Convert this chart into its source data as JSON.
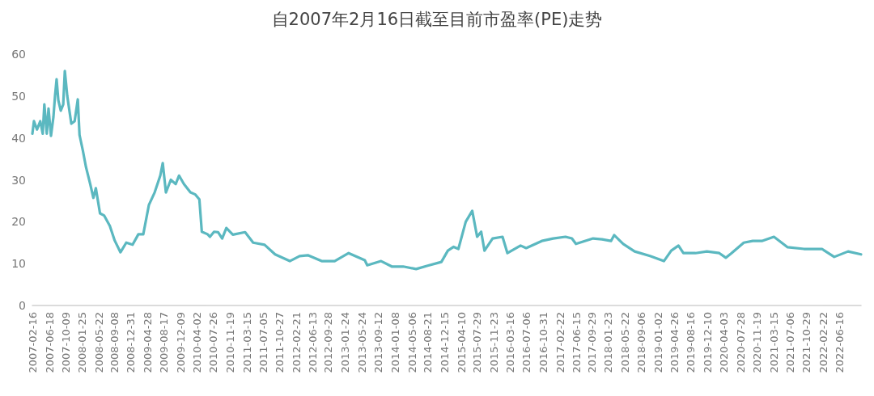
{
  "chart_data": {
    "type": "line",
    "title": "自2007年2月16日截至目前市盈率(PE)走势",
    "x": [
      "2007-02-16",
      "2007-02-27",
      "2007-03-20",
      "2007-04-12",
      "2007-04-29",
      "2007-05-10",
      "2007-05-27",
      "2007-06-08",
      "2007-06-25",
      "2007-07-12",
      "2007-07-23",
      "2007-08-03",
      "2007-08-15",
      "2007-09-01",
      "2007-09-18",
      "2007-09-29",
      "2007-10-16",
      "2007-11-02",
      "2007-11-13",
      "2007-12-06",
      "2007-12-28",
      "2008-01-09",
      "2008-02-01",
      "2008-02-23",
      "2008-03-23",
      "2008-04-14",
      "2008-05-01",
      "2008-05-30",
      "2008-06-27",
      "2008-08-06",
      "2008-09-09",
      "2008-10-19",
      "2008-11-28",
      "2009-01-11",
      "2009-02-20",
      "2009-03-26",
      "2009-05-04",
      "2009-06-13",
      "2009-07-22",
      "2009-08-08",
      "2009-08-30",
      "2009-10-03",
      "2009-11-06",
      "2009-11-29",
      "2010-01-02",
      "2010-02-16",
      "2010-03-22",
      "2010-04-19",
      "2010-05-06",
      "2010-06-15",
      "2010-07-01",
      "2010-07-30",
      "2010-08-27",
      "2010-09-24",
      "2010-10-23",
      "2010-12-07",
      "2011-03-02",
      "2011-04-27",
      "2011-07-15",
      "2011-09-26",
      "2012-01-06",
      "2012-03-14",
      "2012-05-10",
      "2012-08-14",
      "2012-11-12",
      "2013-02-17",
      "2013-06-09",
      "2013-06-26",
      "2013-09-30",
      "2013-12-13",
      "2014-03-02",
      "2014-05-31",
      "2014-08-19",
      "2014-11-22",
      "2015-01-06",
      "2015-02-15",
      "2015-03-20",
      "2015-05-10",
      "2015-06-24",
      "2015-07-28",
      "2015-08-25",
      "2015-09-17",
      "2015-11-12",
      "2016-01-20",
      "2016-02-23",
      "2016-05-24",
      "2016-07-02",
      "2016-10-18",
      "2017-01-05",
      "2017-03-31",
      "2017-05-15",
      "2017-06-12",
      "2017-10-09",
      "2017-12-10",
      "2018-02-10",
      "2018-03-04",
      "2018-05-06",
      "2018-07-24",
      "2018-11-08",
      "2019-02-12",
      "2019-04-04",
      "2019-05-24",
      "2019-06-27",
      "2019-09-19",
      "2019-12-07",
      "2020-03-02",
      "2020-04-16",
      "2020-05-26",
      "2020-08-19",
      "2020-10-20",
      "2020-12-22",
      "2021-03-16",
      "2021-06-19",
      "2021-10-10",
      "2022-02-12",
      "2022-05-08",
      "2022-08-12",
      "2022-11-10"
    ],
    "series": [
      {
        "color": "#5bb8c0",
        "values": [
          41,
          44,
          42,
          44,
          41,
          48,
          41,
          47,
          40.5,
          45,
          50,
          54,
          49,
          46.5,
          48,
          56,
          50,
          46,
          43.4,
          44,
          49.2,
          40.7,
          37,
          33,
          29,
          25.7,
          28,
          22,
          21.5,
          19,
          15.5,
          12.7,
          15,
          14.5,
          17,
          17,
          24,
          27,
          31,
          34,
          27,
          30,
          29,
          31,
          29,
          27,
          26.5,
          25.3,
          17.6,
          17,
          16.4,
          17.6,
          17.5,
          16,
          18.5,
          16.9,
          17.5,
          15,
          14.5,
          12.2,
          10.6,
          11.8,
          12,
          10.6,
          10.6,
          12.5,
          10.8,
          9.6,
          10.6,
          9.3,
          9.3,
          8.7,
          9.5,
          10.4,
          13.1,
          14,
          13.5,
          20,
          22.6,
          16.4,
          17.6,
          13.1,
          16,
          16.4,
          12.5,
          14.3,
          13.7,
          15.4,
          16,
          16.4,
          16,
          14.7,
          16,
          15.8,
          15.4,
          16.8,
          14.7,
          12.9,
          11.8,
          10.6,
          13.1,
          14.3,
          12.5,
          12.5,
          12.9,
          12.5,
          11.4,
          12.5,
          15,
          15.4,
          15.4,
          16.4,
          13.9,
          13.5,
          13.5,
          11.6,
          12.9,
          12.2
        ]
      }
    ],
    "xlim": [
      "2007-02-16",
      "2022-11-10"
    ],
    "xticks": [
      "2007-02-16",
      "2007-06-18",
      "2007-10-09",
      "2008-01-25",
      "2008-05-22",
      "2008-09-08",
      "2008-12-31",
      "2009-04-28",
      "2009-08-17",
      "2009-12-09",
      "2010-04-02",
      "2010-07-26",
      "2010-11-19",
      "2011-03-15",
      "2011-07-05",
      "2011-10-27",
      "2012-02-21",
      "2012-06-13",
      "2012-09-28",
      "2013-01-24",
      "2013-05-24",
      "2013-09-12",
      "2014-01-08",
      "2014-05-06",
      "2014-08-21",
      "2014-12-15",
      "2015-04-10",
      "2015-07-29",
      "2015-11-23",
      "2016-03-16",
      "2016-07-06",
      "2016-10-31",
      "2017-02-22",
      "2017-06-15",
      "2017-09-29",
      "2018-01-23",
      "2018-05-22",
      "2018-09-06",
      "2019-01-02",
      "2019-04-26",
      "2019-08-16",
      "2019-12-10",
      "2020-04-03",
      "2020-07-28",
      "2020-11-19",
      "2021-03-15",
      "2021-07-06",
      "2021-10-29",
      "2022-02-22",
      "2022-06-16"
    ],
    "ylim": [
      0,
      60
    ],
    "yticks": [
      0,
      10,
      20,
      30,
      40,
      50,
      60
    ],
    "grid": false,
    "marker": "none",
    "line_style": "solid"
  }
}
